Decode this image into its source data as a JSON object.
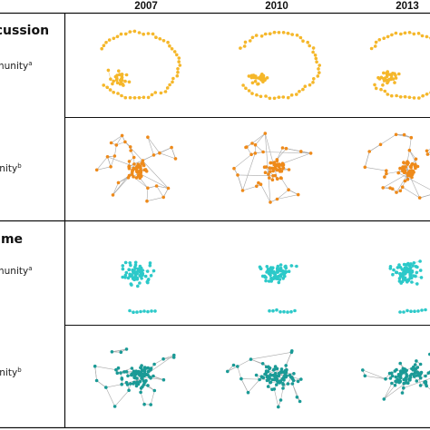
{
  "columns": [
    "2007",
    "2010",
    "2013"
  ],
  "groups": [
    {
      "title": "Discussion",
      "rows": [
        {
          "label": "community",
          "sup": "a",
          "palette": "orange-light",
          "shape": "ring"
        },
        {
          "label": "community",
          "sup": "b",
          "palette": "orange-dark",
          "shape": "hub"
        }
      ]
    },
    {
      "title": "Game",
      "rows": [
        {
          "label": "community",
          "sup": "a",
          "palette": "teal-light",
          "shape": "cluster"
        },
        {
          "label": "community",
          "sup": "b",
          "palette": "teal-dark",
          "shape": "mesh"
        }
      ]
    }
  ],
  "palettes": {
    "orange-light": {
      "node": "#f5b72a",
      "edge": "#f0c86a"
    },
    "orange-dark": {
      "node": "#ee8a1a",
      "edge": "#9a9a9a"
    },
    "teal-light": {
      "node": "#2cc9c9",
      "edge": "#7fdcdc"
    },
    "teal-dark": {
      "node": "#1a9a96",
      "edge": "#9a9a9a"
    }
  },
  "colors": {
    "rule": "#111111"
  }
}
